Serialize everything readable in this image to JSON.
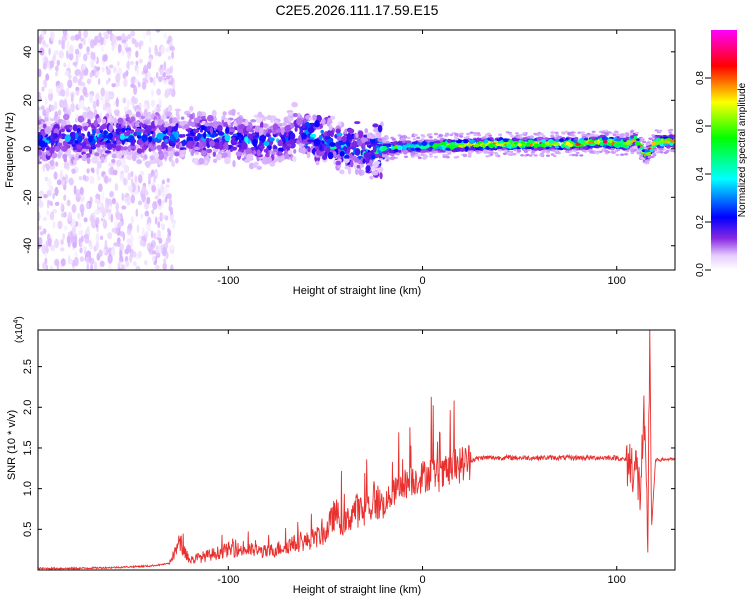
{
  "figure_title": "C2E5.2026.111.17.59.E15",
  "chart_data": [
    {
      "type": "heatmap",
      "title": "C2E5.2026.111.17.59.E15",
      "xlabel": "Height of straight line (km)",
      "ylabel": "Frequency (Hz)",
      "xlim": [
        -198,
        130
      ],
      "ylim": [
        -50,
        49
      ],
      "x_ticks": [
        -100,
        0,
        100
      ],
      "y_ticks": [
        -40,
        -20,
        0,
        20,
        40
      ],
      "colorbar": {
        "label": "Normalized spectral amplitude",
        "range": [
          0,
          1
        ],
        "ticks": [
          0.0,
          0.2,
          0.4,
          0.6,
          0.8
        ],
        "colormap": [
          "#ffffff",
          "#d9b3ff",
          "#8a2be2",
          "#0000ff",
          "#00ffff",
          "#00ff00",
          "#ffff00",
          "#ff0000",
          "#ff00ff"
        ]
      },
      "ridge_center_hz": [
        [
          -190,
          4
        ],
        [
          -160,
          5
        ],
        [
          -140,
          5
        ],
        [
          -120,
          5
        ],
        [
          -100,
          5
        ],
        [
          -85,
          3
        ],
        [
          -70,
          3
        ],
        [
          -65,
          8
        ],
        [
          -55,
          5
        ],
        [
          -45,
          2
        ],
        [
          -35,
          0
        ],
        [
          -28,
          -1
        ],
        [
          -20,
          0
        ],
        [
          -10,
          1
        ],
        [
          0,
          1
        ],
        [
          40,
          2
        ],
        [
          80,
          2
        ],
        [
          92,
          3
        ],
        [
          105,
          2
        ],
        [
          110,
          4
        ],
        [
          115,
          -3
        ],
        [
          120,
          3
        ],
        [
          130,
          3
        ]
      ]
    },
    {
      "type": "line",
      "xlabel": "Height of straight line (km)",
      "ylabel": "SNR (10 * v/v)",
      "y_scale_label": "(x10",
      "y_scale_exp": "4",
      "xlim": [
        -198,
        130
      ],
      "ylim": [
        0,
        2.95
      ],
      "x_ticks": [
        -100,
        0,
        100
      ],
      "y_ticks": [
        0.5,
        1.0,
        1.5,
        2.0,
        2.5
      ],
      "series": [
        {
          "name": "SNR",
          "color": "#e8302e",
          "points": [
            [
              -198,
              0.02
            ],
            [
              -180,
              0.02
            ],
            [
              -160,
              0.03
            ],
            [
              -140,
              0.05
            ],
            [
              -130,
              0.08
            ],
            [
              -125,
              0.35
            ],
            [
              -120,
              0.12
            ],
            [
              -110,
              0.18
            ],
            [
              -100,
              0.25
            ],
            [
              -90,
              0.25
            ],
            [
              -80,
              0.22
            ],
            [
              -70,
              0.3
            ],
            [
              -60,
              0.35
            ],
            [
              -50,
              0.45
            ],
            [
              -45,
              0.7
            ],
            [
              -40,
              0.55
            ],
            [
              -35,
              0.75
            ],
            [
              -30,
              0.7
            ],
            [
              -25,
              0.85
            ],
            [
              -20,
              0.8
            ],
            [
              -15,
              0.95
            ],
            [
              -10,
              1.05
            ],
            [
              -5,
              1.1
            ],
            [
              0,
              1.15
            ],
            [
              5,
              1.2
            ],
            [
              10,
              1.15
            ],
            [
              15,
              1.25
            ],
            [
              20,
              1.3
            ],
            [
              25,
              1.35
            ],
            [
              30,
              1.38
            ],
            [
              40,
              1.38
            ],
            [
              60,
              1.38
            ],
            [
              80,
              1.38
            ],
            [
              100,
              1.38
            ],
            [
              105,
              1.35
            ],
            [
              110,
              1.25
            ],
            [
              112,
              0.95
            ],
            [
              114,
              1.8
            ],
            [
              116,
              0.4
            ],
            [
              117,
              2.95
            ],
            [
              118,
              0.55
            ],
            [
              120,
              1.35
            ],
            [
              125,
              1.36
            ],
            [
              130,
              1.36
            ]
          ]
        }
      ]
    }
  ]
}
